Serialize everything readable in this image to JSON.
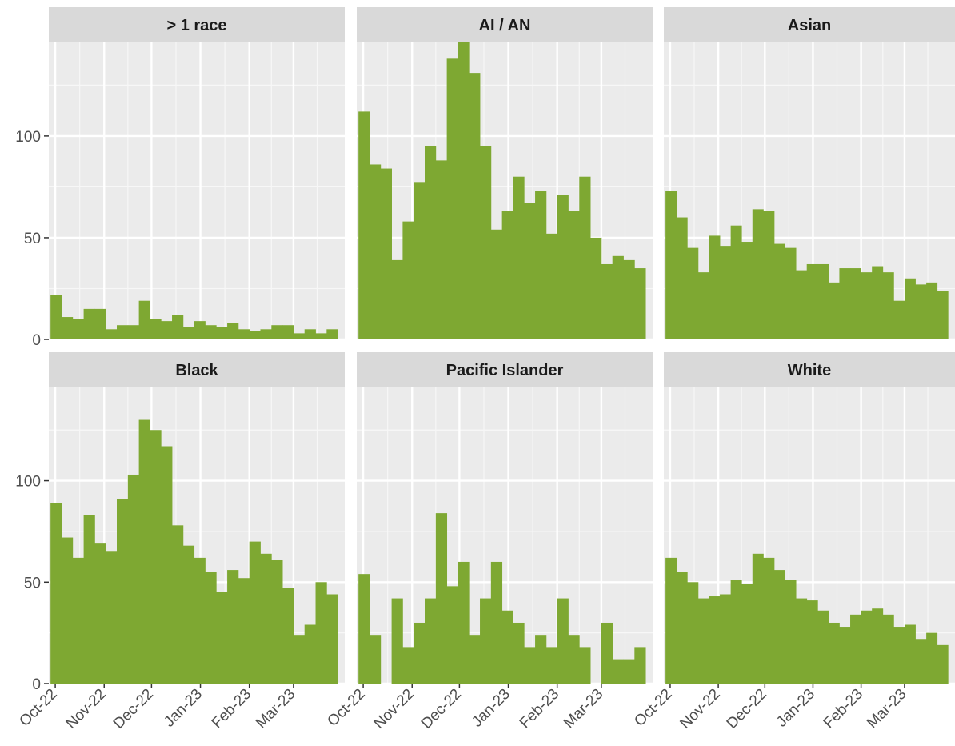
{
  "chart_data": {
    "type": "bar",
    "layout": "facet grid, 2 rows x 3 columns, shared axes",
    "ylim": [
      0,
      146
    ],
    "y_ticks": [
      0,
      50,
      100
    ],
    "x_ticks": [
      "Oct-22",
      "Nov-22",
      "Dec-22",
      "Jan-23",
      "Feb-23",
      "Mar-23"
    ],
    "bar_color": "#7ea832",
    "panel_background": "#ebebeb",
    "strip_background": "#d9d9d9",
    "grid": true,
    "panels": [
      {
        "title": "> 1 race",
        "values": [
          22,
          11,
          10,
          15,
          15,
          5,
          7,
          7,
          19,
          10,
          9,
          12,
          6,
          9,
          7,
          6,
          8,
          5,
          4,
          5,
          7,
          7,
          3,
          5,
          3,
          5
        ]
      },
      {
        "title": "AI / AN",
        "values": [
          112,
          86,
          84,
          39,
          58,
          77,
          95,
          88,
          138,
          146,
          131,
          95,
          54,
          63,
          80,
          67,
          73,
          52,
          71,
          63,
          80,
          50,
          37,
          41,
          39,
          35
        ]
      },
      {
        "title": "Asian",
        "values": [
          73,
          60,
          45,
          33,
          51,
          46,
          56,
          48,
          64,
          63,
          47,
          45,
          34,
          37,
          37,
          28,
          35,
          35,
          33,
          36,
          33,
          19,
          30,
          27,
          28,
          24
        ]
      },
      {
        "title": "Black",
        "values": [
          89,
          72,
          62,
          83,
          69,
          65,
          91,
          103,
          130,
          125,
          117,
          78,
          68,
          62,
          55,
          45,
          56,
          52,
          70,
          64,
          61,
          47,
          24,
          29,
          50,
          44
        ]
      },
      {
        "title": "Pacific Islander",
        "values": [
          54,
          24,
          0,
          42,
          18,
          30,
          42,
          84,
          48,
          60,
          24,
          42,
          60,
          36,
          30,
          18,
          24,
          18,
          42,
          24,
          18,
          0,
          30,
          12,
          12,
          18
        ]
      },
      {
        "title": "White",
        "values": [
          62,
          55,
          50,
          42,
          43,
          44,
          51,
          49,
          64,
          62,
          56,
          51,
          42,
          41,
          36,
          30,
          28,
          34,
          36,
          37,
          34,
          28,
          29,
          22,
          25,
          19
        ]
      }
    ]
  }
}
